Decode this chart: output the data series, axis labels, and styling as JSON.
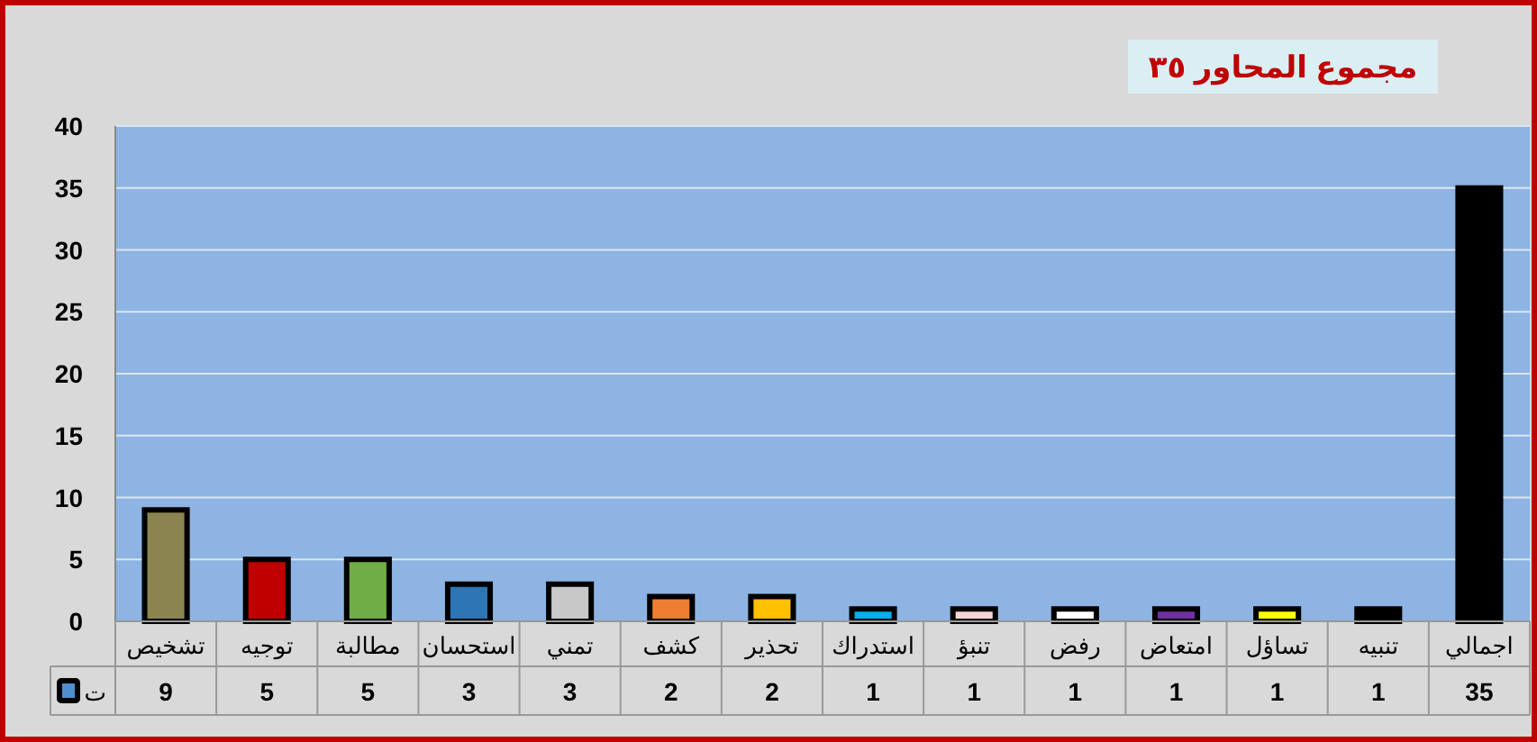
{
  "chart_data": {
    "type": "bar",
    "title": "مجموع المحاور ٣٥",
    "categories": [
      "تشخيص",
      "توجيه",
      "مطالبة",
      "استحسان",
      "تمني",
      "كشف",
      "تحذير",
      "استدراك",
      "تنبؤ",
      "رفض",
      "امتعاض",
      "تساؤل",
      "تنبيه",
      "اجمالي"
    ],
    "series": [
      {
        "name": "ت",
        "color": "#4f8fd0",
        "colors": [
          "#8b8450",
          "#c00000",
          "#70ad47",
          "#2e75b6",
          "#c8c8c8",
          "#ed7d31",
          "#ffc000",
          "#00b0f0",
          "#f4d5d5",
          "#ffffff",
          "#7030a0",
          "#ffff00",
          "#000000",
          "#000000"
        ],
        "values": [
          9,
          5,
          5,
          3,
          3,
          2,
          2,
          1,
          1,
          1,
          1,
          1,
          1,
          35
        ]
      }
    ],
    "ylim": [
      0,
      40
    ],
    "yticks": [
      0,
      5,
      10,
      15,
      20,
      25,
      30,
      35,
      40
    ],
    "grid": "y",
    "data_labels": true,
    "legend": "bottom left"
  }
}
